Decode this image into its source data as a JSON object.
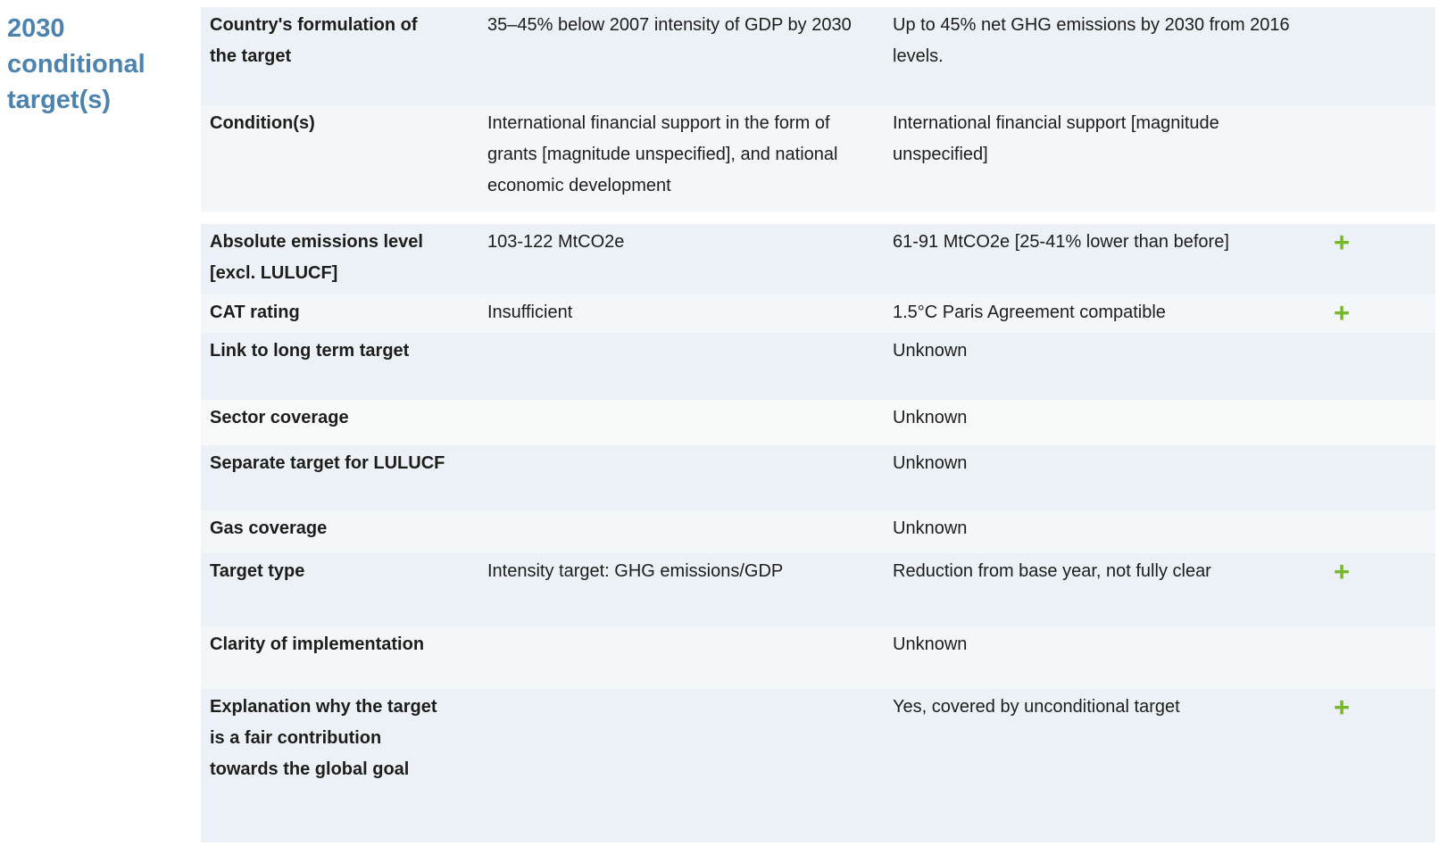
{
  "section": {
    "title": "2030 conditional target(s)"
  },
  "colors": {
    "heading_blue": "#4b82ae",
    "plus_green": "#76b82a",
    "row_tint_dark": "#ebf1f6",
    "row_tint_light": "#f3f7fa",
    "row_tint_white": "#f8faf9",
    "text": "#1d1d1b"
  },
  "icons": {
    "plus": "+"
  },
  "table": {
    "rows": [
      {
        "label": "Country's formulation of the target",
        "col2": "35–45% below 2007 intensity of GDP by 2030",
        "col3": "Up to 45% net GHG emissions by 2030 from 2016 levels.",
        "plus": false,
        "tint": "dark",
        "gap_after": false
      },
      {
        "label": "Condition(s)",
        "col2": "International financial support in the form of grants [magnitude unspecified], and national economic development",
        "col3": "International financial support [magnitude unspecified]",
        "plus": false,
        "tint": "light",
        "gap_after": true
      },
      {
        "label": "Absolute emissions level [excl. LULUCF]",
        "col2": "103-122 MtCO2e",
        "col3": "61-91 MtCO2e [25-41% lower than before]",
        "plus": true,
        "tint": "dark",
        "gap_after": false
      },
      {
        "label": "CAT rating",
        "col2": "Insufficient",
        "col3": "1.5°C Paris Agreement compatible",
        "plus": true,
        "tint": "light",
        "gap_after": false
      },
      {
        "label": "Link to long term target",
        "col2": "",
        "col3": "Unknown",
        "plus": false,
        "tint": "dark",
        "gap_after": false
      },
      {
        "label": "Sector coverage",
        "col2": "",
        "col3": "Unknown",
        "plus": false,
        "tint": "white",
        "gap_after": false
      },
      {
        "label": "Separate target for LULUCF",
        "col2": "",
        "col3": "Unknown",
        "plus": false,
        "tint": "dark",
        "gap_after": false
      },
      {
        "label": "Gas coverage",
        "col2": "",
        "col3": "Unknown",
        "plus": false,
        "tint": "light",
        "gap_after": false
      },
      {
        "label": "Target type",
        "col2": "Intensity target: GHG emissions/GDP",
        "col3": "Reduction from base year, not fully clear",
        "plus": true,
        "tint": "dark",
        "gap_after": false
      },
      {
        "label": "Clarity of implementation",
        "col2": "",
        "col3": "Unknown",
        "plus": false,
        "tint": "light",
        "gap_after": false
      },
      {
        "label": "Explanation why the target is a fair contribution towards the global goal",
        "col2": "",
        "col3": "Yes, covered by unconditional target",
        "plus": true,
        "tint": "dark",
        "gap_after": false
      }
    ]
  }
}
